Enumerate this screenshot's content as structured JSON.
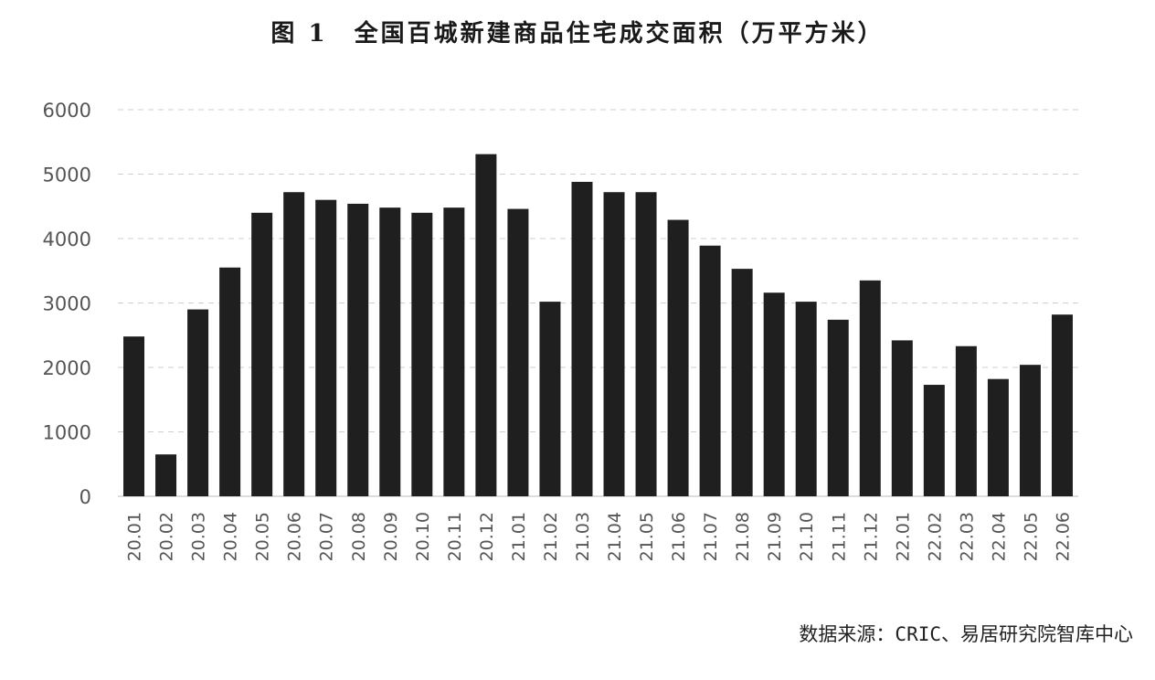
{
  "chart_data": {
    "type": "bar",
    "title": "图 1　全国百城新建商品住宅成交面积（万平方米）",
    "source": "数据来源：CRIC、易居研究院智库中心",
    "categories": [
      "20.01",
      "20.02",
      "20.03",
      "20.04",
      "20.05",
      "20.06",
      "20.07",
      "20.08",
      "20.09",
      "20.10",
      "20.11",
      "20.12",
      "21.01",
      "21.02",
      "21.03",
      "21.04",
      "21.05",
      "21.06",
      "21.07",
      "21.08",
      "21.09",
      "21.10",
      "21.11",
      "21.12",
      "22.01",
      "22.02",
      "22.03",
      "22.04",
      "22.05",
      "22.06"
    ],
    "values": [
      2480,
      650,
      2900,
      3550,
      4400,
      4720,
      4600,
      4540,
      4480,
      4400,
      4480,
      5310,
      4460,
      3020,
      4880,
      4720,
      4720,
      4290,
      3890,
      3530,
      3160,
      3020,
      2740,
      3350,
      2420,
      1730,
      2330,
      1820,
      2040,
      2820
    ],
    "yticks": [
      0,
      1000,
      2000,
      3000,
      4000,
      5000,
      6000
    ],
    "ylim": [
      0,
      6000
    ],
    "grid": true,
    "bar_color": "#1f1f1f"
  }
}
